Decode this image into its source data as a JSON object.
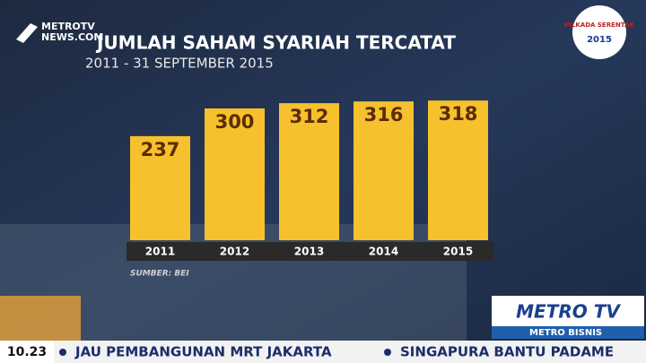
{
  "chart_data": {
    "type": "bar",
    "title": "JUMLAH SAHAM SYARIAH TERCATAT",
    "subtitle": "2011 - 31 SEPTEMBER 2015",
    "source": "SUMBER: BEI",
    "categories": [
      "2011",
      "2012",
      "2013",
      "2014",
      "2015"
    ],
    "values": [
      237,
      300,
      312,
      316,
      318
    ],
    "color": "#f6c12c",
    "label_color": "#5a2c08"
  },
  "overlay": {
    "channel_logo": [
      "METROTV",
      "NEWS.COM"
    ],
    "event_logo": [
      "PILKADA SERENTAK",
      "2015"
    ],
    "station": "METRO TV",
    "program": "METRO BISNIS",
    "time": "10.23",
    "ticker": [
      "JAU PEMBANGUNAN MRT JAKARTA",
      "SINGAPURA BANTU PADAME"
    ]
  }
}
